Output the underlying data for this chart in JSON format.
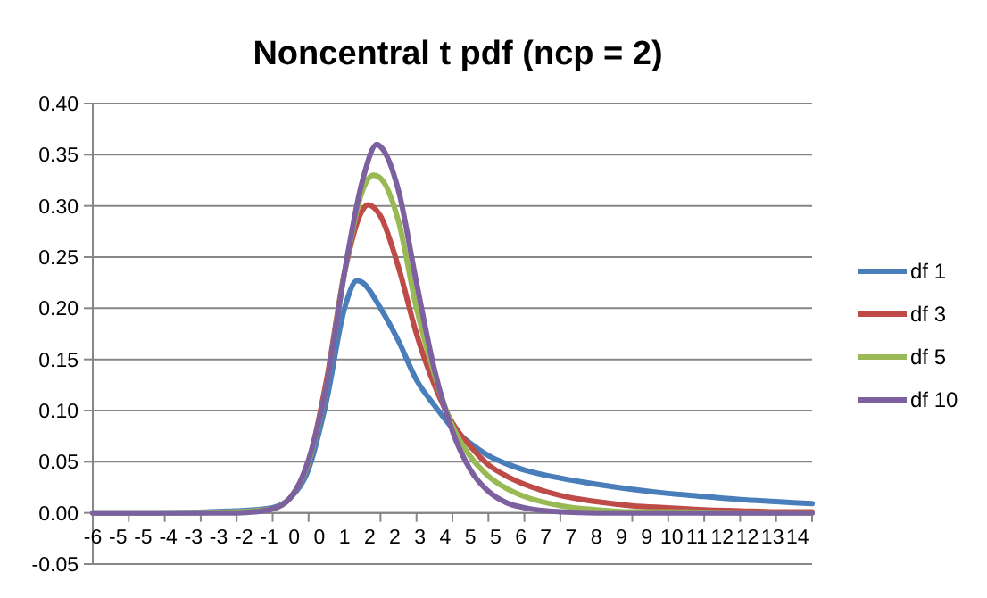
{
  "chart_data": {
    "type": "line",
    "title": "Noncentral t pdf (ncp = 2)",
    "xlim": [
      -6,
      14
    ],
    "xticks": [
      {
        "value": -6,
        "label": "-6"
      },
      {
        "value": -5.3,
        "label": "-5"
      },
      {
        "value": -4.6,
        "label": "-5"
      },
      {
        "value": -3.9,
        "label": "-4"
      },
      {
        "value": -3.2,
        "label": "-3"
      },
      {
        "value": -2.5,
        "label": "-3"
      },
      {
        "value": -1.8,
        "label": "-2"
      },
      {
        "value": -1.1,
        "label": "-1"
      },
      {
        "value": -0.4,
        "label": "0"
      },
      {
        "value": 0.3,
        "label": "0"
      },
      {
        "value": 1,
        "label": "1"
      },
      {
        "value": 1.7,
        "label": "2"
      },
      {
        "value": 2.4,
        "label": "2"
      },
      {
        "value": 3.1,
        "label": "3"
      },
      {
        "value": 3.8,
        "label": "4"
      },
      {
        "value": 4.5,
        "label": "5"
      },
      {
        "value": 5.2,
        "label": "5"
      },
      {
        "value": 5.9,
        "label": "6"
      },
      {
        "value": 6.6,
        "label": "7"
      },
      {
        "value": 7.3,
        "label": "7"
      },
      {
        "value": 8,
        "label": "8"
      },
      {
        "value": 8.7,
        "label": "9"
      },
      {
        "value": 9.4,
        "label": "9"
      },
      {
        "value": 10.1,
        "label": "10"
      },
      {
        "value": 10.8,
        "label": "11"
      },
      {
        "value": 11.5,
        "label": "12"
      },
      {
        "value": 12.2,
        "label": "12"
      },
      {
        "value": 12.9,
        "label": "13"
      },
      {
        "value": 13.6,
        "label": "14"
      },
      {
        "value": -5,
        "label": null
      },
      {
        "value": -4,
        "label": null
      },
      {
        "value": -3,
        "label": null
      },
      {
        "value": -2,
        "label": null
      },
      {
        "value": -1,
        "label": null
      },
      {
        "value": 0,
        "label": null
      },
      {
        "value": 2,
        "label": null
      },
      {
        "value": 3,
        "label": null
      },
      {
        "value": 4,
        "label": null
      },
      {
        "value": 5,
        "label": null
      },
      {
        "value": 6,
        "label": null
      },
      {
        "value": 7,
        "label": null
      },
      {
        "value": 9,
        "label": null
      },
      {
        "value": 10,
        "label": null
      },
      {
        "value": 11,
        "label": null
      },
      {
        "value": 12,
        "label": null
      },
      {
        "value": 13,
        "label": null
      },
      {
        "value": 14,
        "label": null
      }
    ],
    "ylim": [
      -0.05,
      0.4
    ],
    "yticks": [
      {
        "value": -0.05,
        "label": "-0.05"
      },
      {
        "value": 0,
        "label": "0.00"
      },
      {
        "value": 0.05,
        "label": "0.05"
      },
      {
        "value": 0.1,
        "label": "0.10"
      },
      {
        "value": 0.15,
        "label": "0.15"
      },
      {
        "value": 0.2,
        "label": "0.20"
      },
      {
        "value": 0.25,
        "label": "0.25"
      },
      {
        "value": 0.3,
        "label": "0.30"
      },
      {
        "value": 0.35,
        "label": "0.35"
      },
      {
        "value": 0.4,
        "label": "0.40"
      }
    ],
    "grid": "y",
    "legend": "right",
    "marker": "none",
    "line_style": "solid",
    "series": [
      {
        "name": "df 1",
        "color": "#4a7ebb",
        "x": [
          -6,
          -4,
          -2,
          -1.5,
          -1,
          -0.5,
          0,
          0.5,
          1,
          1.35,
          1.5,
          2,
          2.5,
          3,
          3.5,
          4,
          4.5,
          5,
          5.5,
          6,
          7,
          8,
          9,
          10,
          11,
          12,
          13,
          14
        ],
        "values": [
          0,
          0,
          0.002,
          0.003,
          0.005,
          0.015,
          0.043,
          0.11,
          0.2,
          0.227,
          0.225,
          0.2,
          0.168,
          0.13,
          0.105,
          0.083,
          0.068,
          0.056,
          0.048,
          0.042,
          0.034,
          0.028,
          0.023,
          0.019,
          0.016,
          0.013,
          0.011,
          0.009
        ]
      },
      {
        "name": "df 3",
        "color": "#be4b48",
        "x": [
          -1.5,
          -1,
          -0.5,
          0,
          0.5,
          1,
          1.5,
          1.65,
          2,
          2.5,
          3,
          3.5,
          4,
          4.5,
          5,
          5.5,
          6,
          7,
          8,
          9,
          10,
          11,
          12,
          13,
          14
        ],
        "values": [
          0.002,
          0.004,
          0.015,
          0.05,
          0.13,
          0.235,
          0.296,
          0.301,
          0.29,
          0.24,
          0.175,
          0.125,
          0.088,
          0.065,
          0.047,
          0.036,
          0.028,
          0.017,
          0.011,
          0.007,
          0.005,
          0.003,
          0.002,
          0.001,
          0.001
        ]
      },
      {
        "name": "df 5",
        "color": "#98b954",
        "x": [
          -6,
          -4,
          -2,
          -1.5,
          -1,
          -0.5,
          0,
          0.5,
          1,
          1.5,
          1.8,
          2,
          2.5,
          3,
          3.5,
          4,
          4.5,
          5,
          5.5,
          6,
          7,
          8,
          9,
          10,
          12,
          14
        ],
        "values": [
          0,
          0,
          0.001,
          0.002,
          0.004,
          0.015,
          0.05,
          0.125,
          0.235,
          0.315,
          0.33,
          0.327,
          0.285,
          0.2,
          0.135,
          0.085,
          0.055,
          0.036,
          0.024,
          0.016,
          0.007,
          0.003,
          0.001,
          0.001,
          0,
          0
        ]
      },
      {
        "name": "df 10",
        "color": "#7d60a0",
        "x": [
          -6,
          -4,
          -2,
          -1.5,
          -1,
          -0.5,
          0,
          0.5,
          1,
          1.5,
          1.9,
          2,
          2.5,
          3,
          3.5,
          4,
          4.5,
          5,
          5.5,
          6,
          7,
          8,
          10,
          12,
          14
        ],
        "values": [
          0,
          0,
          0,
          0.001,
          0.004,
          0.015,
          0.052,
          0.125,
          0.235,
          0.325,
          0.36,
          0.358,
          0.315,
          0.225,
          0.14,
          0.08,
          0.042,
          0.021,
          0.01,
          0.005,
          0.001,
          0,
          0,
          0,
          0
        ]
      }
    ]
  }
}
